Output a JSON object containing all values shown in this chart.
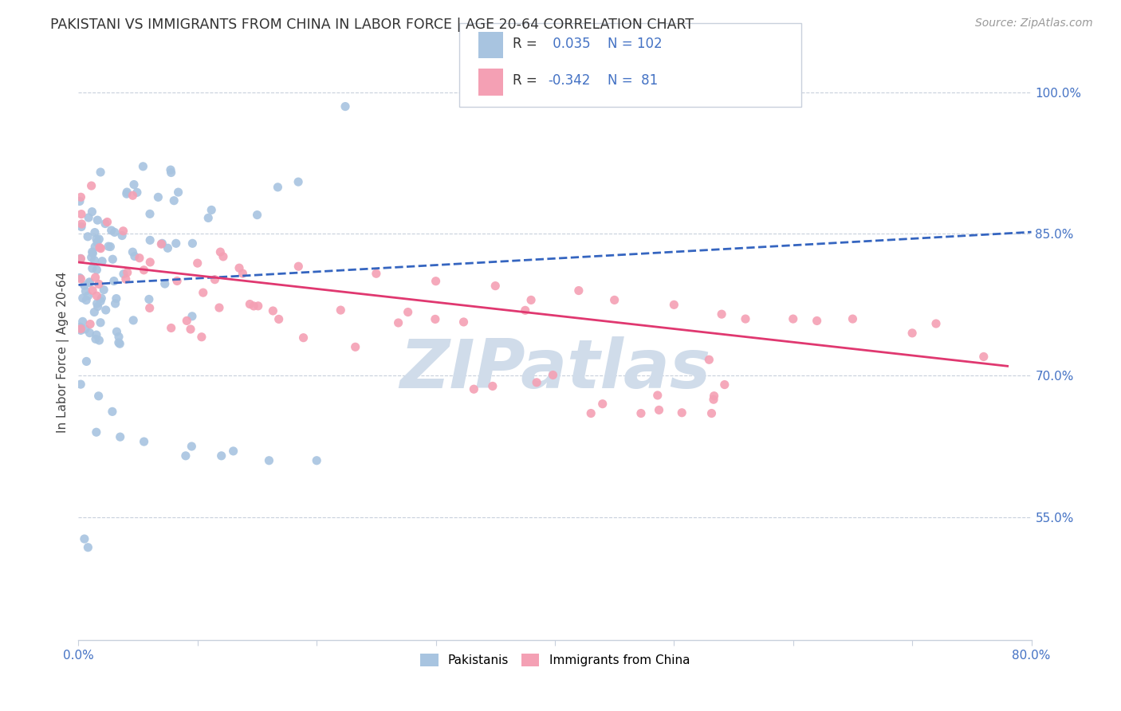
{
  "title": "PAKISTANI VS IMMIGRANTS FROM CHINA IN LABOR FORCE | AGE 20-64 CORRELATION CHART",
  "source": "Source: ZipAtlas.com",
  "ylabel": "In Labor Force | Age 20-64",
  "xlim": [
    0.0,
    0.8
  ],
  "ylim": [
    0.42,
    1.03
  ],
  "ytick_positions": [
    0.55,
    0.7,
    0.85,
    1.0
  ],
  "ytick_labels": [
    "55.0%",
    "70.0%",
    "85.0%",
    "100.0%"
  ],
  "blue_R": 0.035,
  "blue_N": 102,
  "pink_R": -0.342,
  "pink_N": 81,
  "blue_color": "#a8c4e0",
  "pink_color": "#f4a0b4",
  "blue_line_color": "#3565c0",
  "pink_line_color": "#e03870",
  "watermark_color": "#d0dcea",
  "grid_color": "#c8d0dc",
  "tick_color": "#4472c4",
  "blue_trend": [
    0.0,
    0.8,
    0.796,
    0.852
  ],
  "pink_trend": [
    0.0,
    0.78,
    0.82,
    0.71
  ]
}
